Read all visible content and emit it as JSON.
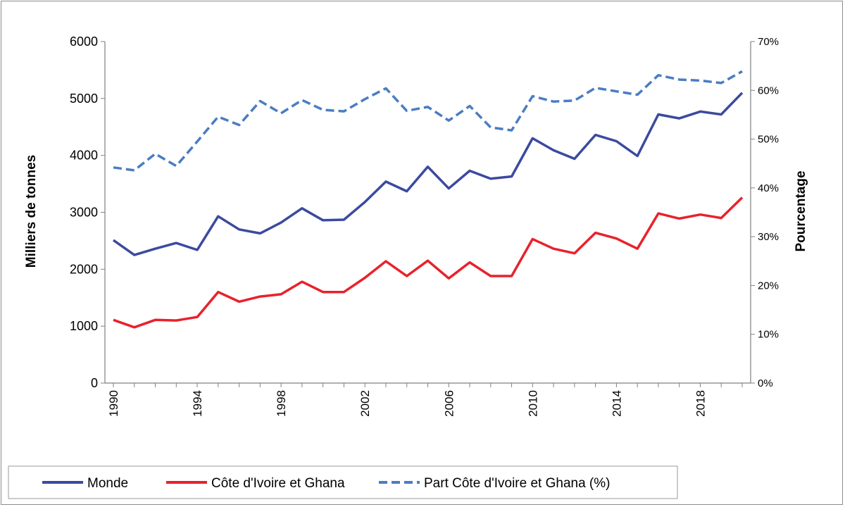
{
  "chart_data": {
    "type": "line",
    "title": "",
    "ylabel": "Milliers de tonnes",
    "y2label": "Pourcentage",
    "ylim": [
      0,
      6000
    ],
    "y2lim": [
      0,
      70
    ],
    "yticks": [
      "0",
      "1000",
      "2000",
      "3000",
      "4000",
      "5000",
      "6000"
    ],
    "y2ticks": [
      "0%",
      "10%",
      "20%",
      "30%",
      "40%",
      "50%",
      "60%",
      "70%"
    ],
    "xticks": [
      "1990",
      "1994",
      "1998",
      "2002",
      "2006",
      "2010",
      "2014",
      "2018"
    ],
    "x": [
      1990,
      1991,
      1992,
      1993,
      1994,
      1995,
      1996,
      1997,
      1998,
      1999,
      2000,
      2001,
      2002,
      2003,
      2004,
      2005,
      2006,
      2007,
      2008,
      2009,
      2010,
      2011,
      2012,
      2013,
      2014,
      2015,
      2016,
      2017,
      2018,
      2019,
      2020
    ],
    "legend_position": "bottom",
    "series": [
      {
        "name": "Monde",
        "axis": "left",
        "color": "#3b4a9f",
        "style": "solid",
        "values": [
          2510,
          2250,
          2360,
          2460,
          2340,
          2930,
          2700,
          2630,
          2820,
          3070,
          2860,
          2870,
          3180,
          3540,
          3370,
          3800,
          3420,
          3730,
          3590,
          3630,
          4300,
          4090,
          3940,
          4360,
          4250,
          3990,
          4720,
          4650,
          4770,
          4720,
          5100
        ]
      },
      {
        "name": "Côte d'Ivoire et Ghana",
        "axis": "left",
        "color": "#e8222b",
        "style": "solid",
        "values": [
          1110,
          980,
          1110,
          1100,
          1160,
          1600,
          1430,
          1520,
          1560,
          1780,
          1600,
          1600,
          1850,
          2140,
          1880,
          2150,
          1840,
          2120,
          1880,
          1880,
          2530,
          2360,
          2280,
          2640,
          2540,
          2360,
          2980,
          2890,
          2960,
          2900,
          3260
        ]
      },
      {
        "name": "Part Côte d'Ivoire et Ghana (%)",
        "axis": "right",
        "color": "#4a7dc2",
        "style": "dashed",
        "values": [
          44.2,
          43.6,
          47.0,
          44.5,
          49.5,
          54.6,
          52.9,
          57.8,
          55.3,
          58.0,
          56.0,
          55.7,
          58.2,
          60.4,
          55.8,
          56.6,
          53.8,
          56.8,
          52.4,
          51.8,
          58.8,
          57.7,
          57.9,
          60.5,
          59.8,
          59.1,
          63.1,
          62.2,
          62.0,
          61.5,
          63.9
        ]
      }
    ]
  }
}
